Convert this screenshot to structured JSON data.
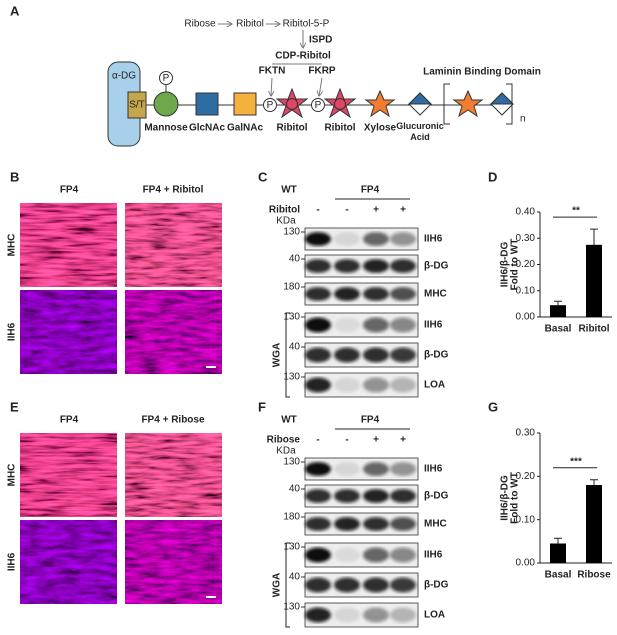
{
  "panel_labels": [
    "A",
    "B",
    "C",
    "D",
    "E",
    "F",
    "G"
  ],
  "pathway": {
    "steps": [
      "Ribose",
      "Ribitol",
      "Ribitol-5-P"
    ],
    "enzyme": "ISPD",
    "product": "CDP-Ribitol",
    "transferases": [
      "FKTN",
      "FKRP"
    ]
  },
  "glycan": {
    "protein": "α-DG",
    "site": "S/T",
    "phosphate": "P",
    "residues": [
      "Mannose",
      "GlcNAc",
      "GalNAc",
      "Ribitol",
      "Ribitol",
      "Xylose",
      "Glucuronic Acid"
    ],
    "domain": "Laminin Binding Domain",
    "repeat": "n"
  },
  "images": [
    {
      "columns": [
        "FP4",
        "FP4 + Ribitol"
      ],
      "rows": [
        "MHC",
        "IIH6"
      ]
    },
    {
      "columns": [
        "FP4",
        "FP4 + Ribose"
      ],
      "rows": [
        "MHC",
        "IIH6"
      ]
    }
  ],
  "blots": [
    {
      "lanes": [
        "WT",
        "FP4"
      ],
      "treatment": "Ribitol",
      "signs": [
        "-",
        "-",
        "+",
        "+"
      ],
      "kda_label": "KDa",
      "group": "WGA",
      "rows": [
        {
          "kda": 130,
          "label": "IIH6"
        },
        {
          "kda": 40,
          "label": "β-DG"
        },
        {
          "kda": 180,
          "label": "MHC"
        },
        {
          "kda": 130,
          "label": "IIH6"
        },
        {
          "kda": 40,
          "label": "β-DG"
        },
        {
          "kda": 130,
          "label": "LOA"
        }
      ]
    },
    {
      "lanes": [
        "WT",
        "FP4"
      ],
      "treatment": "Ribose",
      "signs": [
        "-",
        "-",
        "+",
        "+"
      ],
      "kda_label": "KDa",
      "group": "WGA",
      "rows": [
        {
          "kda": 130,
          "label": "IIH6"
        },
        {
          "kda": 40,
          "label": "β-DG"
        },
        {
          "kda": 180,
          "label": "MHC"
        },
        {
          "kda": 130,
          "label": "IIH6"
        },
        {
          "kda": 40,
          "label": "β-DG"
        },
        {
          "kda": 130,
          "label": "LOA"
        }
      ]
    }
  ],
  "chart_data": [
    {
      "type": "bar",
      "y_label": "IIH6/β-DG",
      "y_sublabel": "Fold to WT",
      "categories": [
        "Basal",
        "Ribitol"
      ],
      "values": [
        0.045,
        0.275
      ],
      "errors": [
        0.015,
        0.06
      ],
      "color": "#000000",
      "annotation": "**",
      "ylim": [
        0,
        0.4
      ],
      "yticks": [
        {
          "value": 0,
          "label": "0.00"
        },
        {
          "value": 0.1,
          "label": "0.10"
        },
        {
          "value": 0.2,
          "label": "0.20"
        },
        {
          "value": 0.3,
          "label": "0.30"
        },
        {
          "value": 0.4,
          "label": "0.40"
        }
      ]
    },
    {
      "type": "bar",
      "y_label": "IIH6/β-DG",
      "y_sublabel": "Fold to WT",
      "categories": [
        "Basal",
        "Ribose"
      ],
      "values": [
        0.045,
        0.18
      ],
      "errors": [
        0.012,
        0.012
      ],
      "color": "#000000",
      "annotation": "***",
      "ylim": [
        0,
        0.3
      ],
      "yticks": [
        {
          "value": 0,
          "label": "0.00"
        },
        {
          "value": 0.1,
          "label": "0.10"
        },
        {
          "value": 0.2,
          "label": "0.20"
        },
        {
          "value": 0.3,
          "label": "0.30"
        }
      ]
    }
  ]
}
